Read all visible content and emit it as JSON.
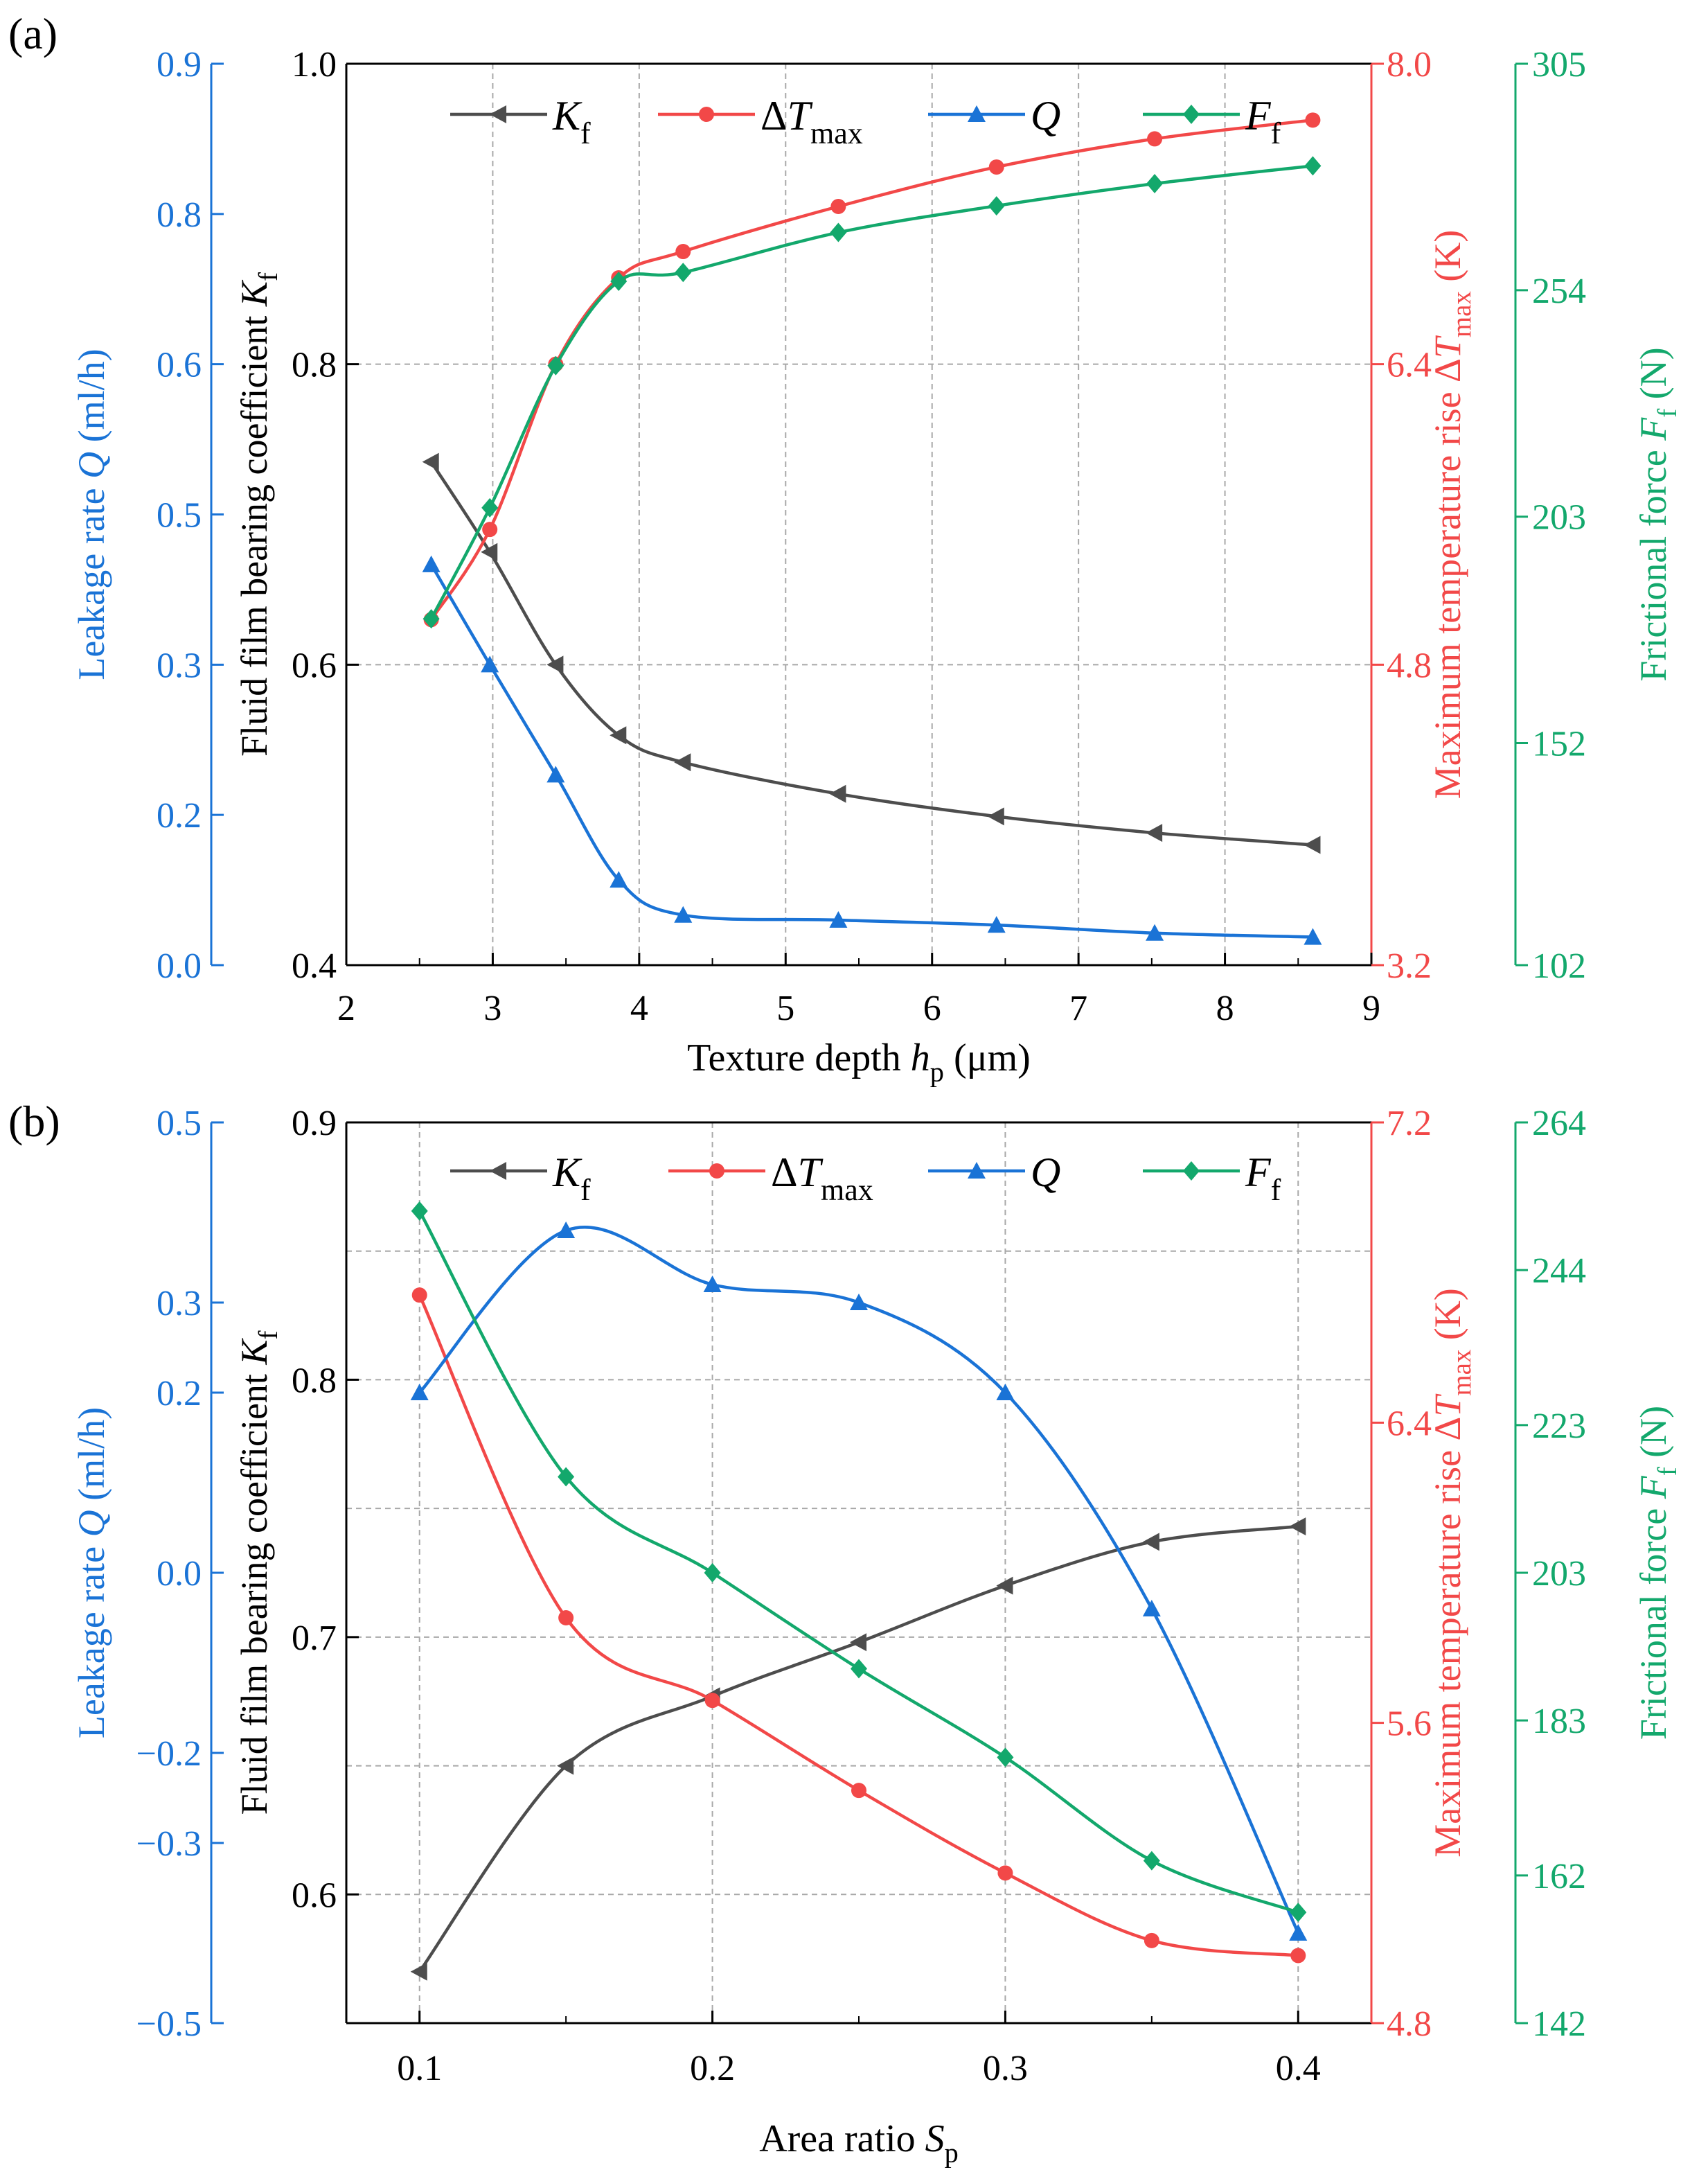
{
  "colors": {
    "kf": "#4d4d4d",
    "dt": "#f24848",
    "q": "#1a73d6",
    "ff": "#13a86c",
    "axis": "#000000",
    "grid": "#a8a8a8"
  },
  "chart_data": [
    {
      "panel_label": "(a)",
      "type": "line",
      "xlabel": {
        "main": "Texture depth ",
        "italic": "h",
        "sub": "p",
        "rest": " (μm)"
      },
      "xlim": [
        2,
        9
      ],
      "xticks": [
        2,
        3,
        4,
        5,
        6,
        7,
        8,
        9
      ],
      "xtick_labels": [
        "2",
        "3",
        "4",
        "5",
        "6",
        "7",
        "8",
        "9"
      ],
      "axes": {
        "kf": {
          "label": "Fluid film bearing coefficient ",
          "label_italic": "K",
          "label_sub": "f",
          "lim": [
            0.4,
            1.0
          ],
          "ticks": [
            0.4,
            0.6,
            0.8,
            1.0
          ],
          "tick_labels": [
            "0.4",
            "0.6",
            "0.8",
            "1.0"
          ]
        },
        "q": {
          "label": "Leakage rate ",
          "label_italic": "Q",
          "label_rest": " (ml/h)",
          "lim": [
            0.0,
            0.9
          ],
          "ticks": [
            0.0,
            0.15,
            0.3,
            0.45,
            0.6,
            0.75,
            0.9
          ],
          "tick_labels": [
            "0.0",
            "0.2",
            "0.3",
            "0.5",
            "0.6",
            "0.8",
            "0.9"
          ]
        },
        "dt": {
          "label": "Maximum temperature rise Δ",
          "label_italic": "T",
          "label_sub": "max",
          "label_rest": " (K)",
          "lim": [
            3.2,
            8.0
          ],
          "ticks": [
            3.2,
            4.8,
            6.4,
            8.0
          ],
          "tick_labels": [
            "3.2",
            "4.8",
            "6.4",
            "8.0"
          ]
        },
        "ff": {
          "label": "Frictional force ",
          "label_italic": "F",
          "label_sub": "f",
          "label_rest": " (N)",
          "lim": [
            102,
            305
          ],
          "ticks": [
            102,
            152,
            203,
            254,
            305
          ],
          "tick_labels": [
            "102",
            "152",
            "203",
            "254",
            "305"
          ]
        }
      },
      "x": [
        2.58,
        2.98,
        3.43,
        3.86,
        4.3,
        5.36,
        6.44,
        7.52,
        8.6
      ],
      "series": [
        {
          "name": "Kf",
          "axis": "kf",
          "marker": "triangle-left",
          "values": [
            0.735,
            0.675,
            0.6,
            0.553,
            0.535,
            0.514,
            0.499,
            0.488,
            0.48
          ]
        },
        {
          "name": "ΔTmax",
          "axis": "dt",
          "marker": "circle",
          "values": [
            5.04,
            5.52,
            6.4,
            6.86,
            7.0,
            7.24,
            7.45,
            7.6,
            7.7
          ]
        },
        {
          "name": "Q",
          "axis": "q",
          "marker": "triangle-up",
          "values": [
            0.4,
            0.3,
            0.19,
            0.085,
            0.05,
            0.045,
            0.04,
            0.032,
            0.028
          ]
        },
        {
          "name": "Ff",
          "axis": "ff",
          "marker": "diamond",
          "values": [
            180,
            205,
            237,
            256,
            258,
            267,
            273,
            278,
            282
          ]
        }
      ],
      "legend": [
        {
          "main": "K",
          "sub": "f",
          "prefix": ""
        },
        {
          "main": "T",
          "sub": "max",
          "prefix": "Δ"
        },
        {
          "main": "Q",
          "sub": "",
          "prefix": ""
        },
        {
          "main": "F",
          "sub": "f",
          "prefix": ""
        }
      ],
      "legend_position": "top"
    },
    {
      "panel_label": "(b)",
      "type": "line",
      "xlabel": {
        "main": "Area ratio  ",
        "italic": "S",
        "sub": "p",
        "rest": ""
      },
      "xlim": [
        0.075,
        0.425
      ],
      "xticks": [
        0.1,
        0.2,
        0.3,
        0.4
      ],
      "xtick_labels": [
        "0.1",
        "0.2",
        "0.3",
        "0.4"
      ],
      "axes": {
        "kf": {
          "label": "Fluid film bearing coefficient ",
          "label_italic": "K",
          "label_sub": "f",
          "lim": [
            0.55,
            0.9
          ],
          "ticks": [
            0.6,
            0.7,
            0.8,
            0.9
          ],
          "tick_labels": [
            "0.6",
            "0.7",
            "0.8",
            "0.9"
          ]
        },
        "q": {
          "label": "Leakage rate ",
          "label_italic": "Q",
          "label_rest": " (ml/h)",
          "lim": [
            -0.5,
            0.5
          ],
          "ticks": [
            -0.5,
            -0.3,
            -0.2,
            0.0,
            0.2,
            0.3,
            0.5
          ],
          "tick_labels": [
            "−0.5",
            "−0.3",
            "−0.2",
            "0.0",
            "0.2",
            "0.3",
            "0.5"
          ]
        },
        "dt": {
          "label": "Maximum temperature rise Δ",
          "label_italic": "T",
          "label_sub": "max",
          "label_rest": " (K)",
          "lim": [
            4.8,
            7.2
          ],
          "ticks": [
            4.8,
            5.6,
            6.4,
            7.2
          ],
          "tick_labels": [
            "4.8",
            "5.6",
            "6.4",
            "7.2"
          ]
        },
        "ff": {
          "label": "Frictional force ",
          "label_italic": "F",
          "label_sub": "f",
          "label_rest": " (N)",
          "lim": [
            142,
            264
          ],
          "ticks": [
            142,
            162,
            183,
            203,
            223,
            244,
            264
          ],
          "tick_labels": [
            "142",
            "162",
            "183",
            "203",
            "223",
            "244",
            "264"
          ]
        }
      },
      "x": [
        0.1,
        0.15,
        0.2,
        0.25,
        0.3,
        0.35,
        0.4
      ],
      "series": [
        {
          "name": "Kf",
          "axis": "kf",
          "marker": "triangle-left",
          "values": [
            0.57,
            0.65,
            0.677,
            0.698,
            0.72,
            0.737,
            0.743
          ]
        },
        {
          "name": "ΔTmax",
          "axis": "dt",
          "marker": "circle",
          "values": [
            6.74,
            5.88,
            5.66,
            5.42,
            5.2,
            5.02,
            4.98
          ]
        },
        {
          "name": "Q",
          "axis": "q",
          "marker": "triangle-up",
          "values": [
            0.2,
            0.38,
            0.32,
            0.3,
            0.2,
            -0.04,
            -0.4
          ]
        },
        {
          "name": "Ff",
          "axis": "ff",
          "marker": "diamond",
          "values": [
            252,
            216,
            203,
            190,
            178,
            164,
            157
          ]
        }
      ],
      "legend": [
        {
          "main": "K",
          "sub": "f",
          "prefix": ""
        },
        {
          "main": "T",
          "sub": "max",
          "prefix": "Δ"
        },
        {
          "main": "Q",
          "sub": "",
          "prefix": ""
        },
        {
          "main": "F",
          "sub": "f",
          "prefix": ""
        }
      ],
      "legend_position": "top"
    }
  ]
}
